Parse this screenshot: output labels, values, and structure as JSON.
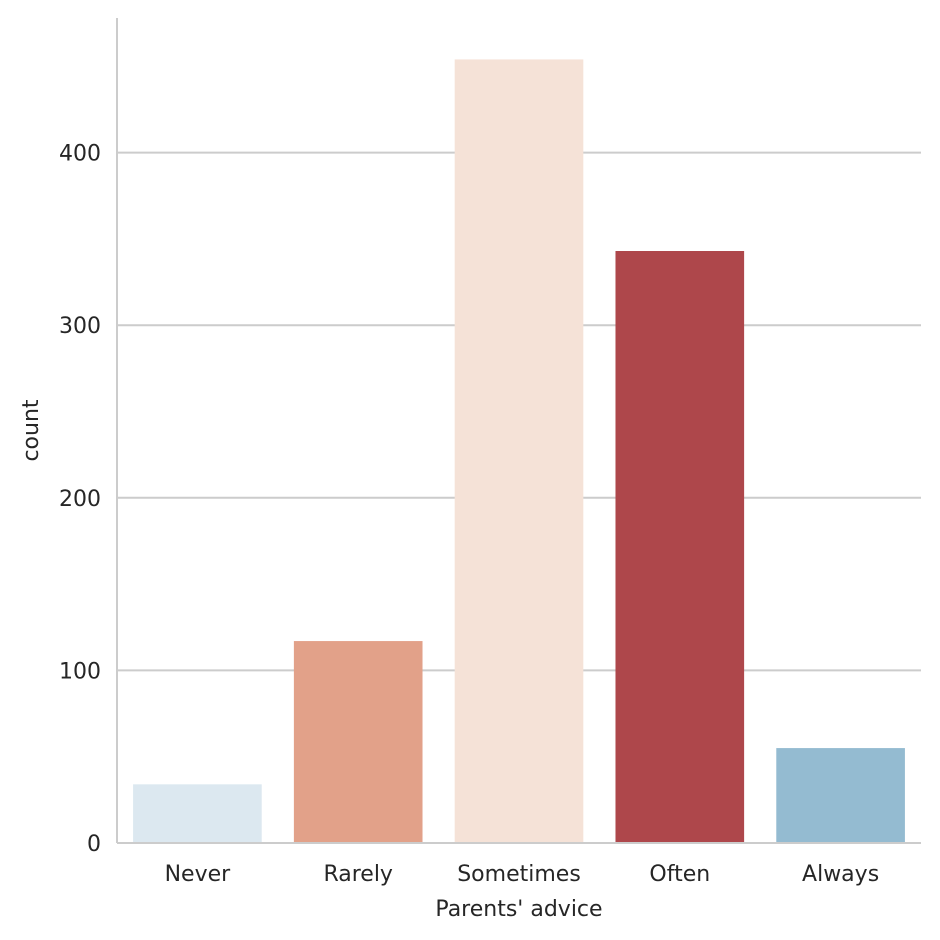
{
  "chart_data": {
    "type": "bar",
    "xlabel": "Parents' advice",
    "ylabel": "count",
    "categories": [
      "Never",
      "Rarely",
      "Sometimes",
      "Often",
      "Always"
    ],
    "values": [
      34,
      117,
      454,
      343,
      55
    ],
    "ylim": [
      0,
      478
    ],
    "yticks": [
      0,
      100,
      200,
      300,
      400
    ],
    "grid": true,
    "colors": [
      "#dce8f0",
      "#e2a189",
      "#f5e2d7",
      "#ae474b",
      "#94bbd1"
    ]
  }
}
